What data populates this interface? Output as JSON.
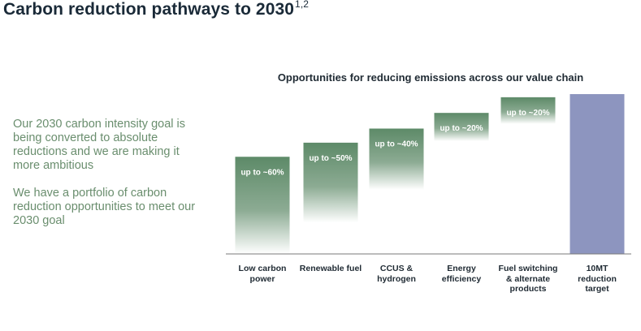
{
  "page_title": "Carbon reduction pathways to 2030",
  "page_title_sup": "1,2",
  "left_text": {
    "paragraph1": "Our 2030 carbon intensity goal is being converted to absolute reductions and we are making it more ambitious",
    "paragraph2": "We have a portfolio of carbon reduction opportunities to meet our 2030 goal"
  },
  "chart_data": {
    "type": "waterfall",
    "title": "Opportunities for reducing emissions across our value chain",
    "categories": [
      "Low carbon\npower",
      "Renewable fuel",
      "CCUS &\nhydrogen",
      "Energy\nefficiency",
      "Fuel switching\n& alternate\nproducts",
      "10MT\nreduction\ntarget"
    ],
    "bars": [
      {
        "label": "up to ~60%",
        "start": 0,
        "end": 6.2,
        "kind": "step"
      },
      {
        "label": "up to ~50%",
        "start": 2.0,
        "end": 7.1,
        "kind": "step"
      },
      {
        "label": "up to ~40%",
        "start": 4.1,
        "end": 8.0,
        "kind": "step"
      },
      {
        "label": "up to ~20%",
        "start": 7.2,
        "end": 9.0,
        "kind": "step"
      },
      {
        "label": "up to ~20%",
        "start": 8.3,
        "end": 10.0,
        "kind": "step"
      },
      {
        "label": "",
        "start": 0,
        "end": 10.2,
        "kind": "total"
      }
    ],
    "ylim": [
      0,
      10.2
    ],
    "colors": {
      "step_top": "#5d8a68",
      "step_bottom": "#ffffff",
      "total": "#8d95bf",
      "axis": "#7a7a7a"
    }
  }
}
